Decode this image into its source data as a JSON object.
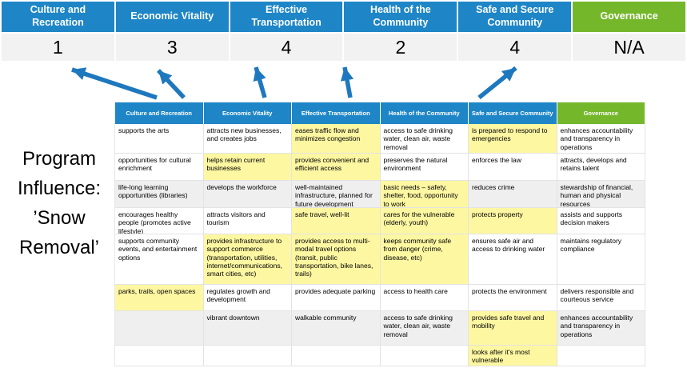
{
  "title": {
    "line1": "Program Influence:",
    "line2": "’Snow Removal’"
  },
  "colors": {
    "header_blue": "#1E86C7",
    "governance_green": "#74B72B",
    "highlight_yellow": "#FDF7A2",
    "shaded_row_gray": "#EFEFEF",
    "score_row_gray": "#F2F2F2",
    "arrow_blue": "#1E78BE"
  },
  "scoreboard": {
    "columns": [
      {
        "label": "Culture and Recreation",
        "score": "1",
        "theme": "blue"
      },
      {
        "label": "Economic Vitality",
        "score": "3",
        "theme": "blue"
      },
      {
        "label": "Effective Transportation",
        "score": "4",
        "theme": "blue"
      },
      {
        "label": "Health of the Community",
        "score": "2",
        "theme": "blue"
      },
      {
        "label": "Safe and Secure Community",
        "score": "4",
        "theme": "blue"
      },
      {
        "label": "Governance",
        "score": "N/A",
        "theme": "green"
      }
    ]
  },
  "arrows": [
    {
      "name": "arrow-culture-and-recreation",
      "points_to": "1"
    },
    {
      "name": "arrow-economic-vitality",
      "points_to": "3"
    },
    {
      "name": "arrow-effective-transportation",
      "points_to": "4"
    },
    {
      "name": "arrow-health-of-the-community",
      "points_to": "2"
    },
    {
      "name": "arrow-safe-and-secure-community",
      "points_to": "4"
    }
  ],
  "matrix": {
    "headers": [
      {
        "label": "Culture and Recreation",
        "theme": "blue"
      },
      {
        "label": "Economic Vitality",
        "theme": "blue"
      },
      {
        "label": "Effective Transportation",
        "theme": "blue"
      },
      {
        "label": "Health of the Community",
        "theme": "blue"
      },
      {
        "label": "Safe and Secure Community",
        "theme": "blue"
      },
      {
        "label": "Governance",
        "theme": "green"
      }
    ],
    "rows": [
      {
        "shaded": false,
        "cells": [
          {
            "t": "supports the arts",
            "hl": false
          },
          {
            "t": "attracts new businesses, and creates jobs",
            "hl": false
          },
          {
            "t": "eases traffic flow and minimizes congestion",
            "hl": true
          },
          {
            "t": "access to safe drinking water, clean air, waste removal",
            "hl": false
          },
          {
            "t": "is prepared to respond to emergencies",
            "hl": true
          },
          {
            "t": "enhances accountability and transparency in operations",
            "hl": false
          }
        ]
      },
      {
        "shaded": false,
        "cells": [
          {
            "t": "opportunities for cultural enrichment",
            "hl": false
          },
          {
            "t": "helps retain current businesses",
            "hl": true
          },
          {
            "t": "provides convenient and efficient access",
            "hl": true
          },
          {
            "t": "preserves the natural environment",
            "hl": false
          },
          {
            "t": "enforces the law",
            "hl": false
          },
          {
            "t": "attracts, develops and retains talent",
            "hl": false
          }
        ]
      },
      {
        "shaded": true,
        "cells": [
          {
            "t": "life-long learning opportunities (libraries)",
            "hl": false
          },
          {
            "t": "develops the workforce",
            "hl": false
          },
          {
            "t": "well-maintained infrastructure, planned for future development",
            "hl": false
          },
          {
            "t": "basic needs – safety, shelter, food, opportunity to work",
            "hl": true
          },
          {
            "t": "reduces crime",
            "hl": false
          },
          {
            "t": "stewardship of financial, human and physical resources",
            "hl": false
          }
        ]
      },
      {
        "shaded": false,
        "cells": [
          {
            "t": "encourages healthy people (promotes active lifestyle)",
            "hl": false
          },
          {
            "t": "attracts visitors and tourism",
            "hl": false
          },
          {
            "t": "safe travel, well-lit",
            "hl": true
          },
          {
            "t": "cares for the vulnerable (elderly, youth)",
            "hl": true
          },
          {
            "t": "protects property",
            "hl": true
          },
          {
            "t": "assists and supports decision makers",
            "hl": false
          }
        ]
      },
      {
        "shaded": false,
        "cells": [
          {
            "t": "supports community events, and entertainment options",
            "hl": false
          },
          {
            "t": "provides infrastructure to support commerce (transportation, utilities, internet/communications, smart cities, etc)",
            "hl": true
          },
          {
            "t": "provides access to multi-modal travel options (transit, public transportation, bike lanes, trails)",
            "hl": true
          },
          {
            "t": "keeps community safe from danger (crime, disease, etc)",
            "hl": true
          },
          {
            "t": "ensures safe air and access to drinking water",
            "hl": false
          },
          {
            "t": "maintains regulatory compliance",
            "hl": false
          }
        ]
      },
      {
        "shaded": false,
        "cells": [
          {
            "t": "parks, trails, open spaces",
            "hl": true
          },
          {
            "t": "regulates growth and development",
            "hl": false
          },
          {
            "t": "provides adequate parking",
            "hl": false
          },
          {
            "t": "access to health care",
            "hl": false
          },
          {
            "t": "protects the environment",
            "hl": false
          },
          {
            "t": "delivers responsible and courteous service",
            "hl": false
          }
        ]
      },
      {
        "shaded": true,
        "cells": [
          {
            "t": "",
            "hl": false
          },
          {
            "t": "vibrant downtown",
            "hl": false
          },
          {
            "t": "walkable community",
            "hl": false
          },
          {
            "t": "access to safe drinking water, clean air, waste removal",
            "hl": false
          },
          {
            "t": "provides safe travel and mobility",
            "hl": true
          },
          {
            "t": "enhances accountability and transparency in operations",
            "hl": false
          }
        ]
      },
      {
        "shaded": false,
        "cells": [
          {
            "t": "",
            "hl": false
          },
          {
            "t": "",
            "hl": false
          },
          {
            "t": "",
            "hl": false
          },
          {
            "t": "",
            "hl": false
          },
          {
            "t": "looks after it's most vulnerable",
            "hl": true
          },
          {
            "t": "",
            "hl": false
          }
        ]
      }
    ]
  }
}
